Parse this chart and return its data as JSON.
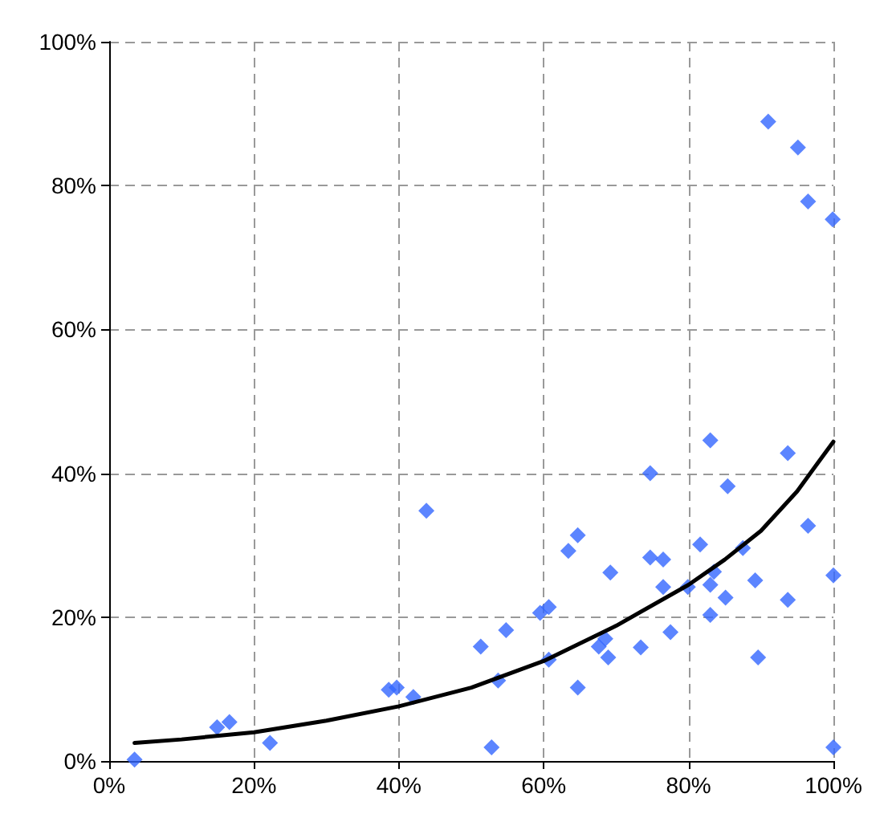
{
  "chart_data": {
    "type": "scatter",
    "xlim": [
      0,
      100
    ],
    "ylim": [
      0,
      100
    ],
    "xticks": [
      {
        "value": 0,
        "label": "0%"
      },
      {
        "value": 20,
        "label": "20%"
      },
      {
        "value": 40,
        "label": "40%"
      },
      {
        "value": 60,
        "label": "60%"
      },
      {
        "value": 80,
        "label": "80%"
      },
      {
        "value": 100,
        "label": "100%"
      }
    ],
    "yticks": [
      {
        "value": 0,
        "label": "0%"
      },
      {
        "value": 20,
        "label": "20%"
      },
      {
        "value": 40,
        "label": "40%"
      },
      {
        "value": 60,
        "label": "60%"
      },
      {
        "value": 80,
        "label": "80%"
      },
      {
        "value": 100,
        "label": "100%"
      }
    ],
    "grid": true,
    "series": [
      {
        "marker": "diamond",
        "color": "#3366ff",
        "x": [
          3.5,
          14.9,
          16.6,
          22.2,
          38.6,
          39.7,
          42.0,
          43.8,
          51.3,
          52.8,
          53.7,
          54.8,
          59.5,
          60.7,
          60.7,
          63.4,
          64.7,
          64.7,
          67.6,
          68.5,
          68.9,
          69.2,
          73.4,
          74.7,
          74.7,
          76.5,
          76.5,
          77.5,
          79.9,
          81.6,
          83.0,
          83.0,
          83.0,
          83.5,
          85.1,
          85.4,
          87.5,
          89.2,
          89.6,
          91.0,
          93.7,
          93.7,
          95.1,
          96.5,
          96.5,
          99.9,
          100,
          100
        ],
        "values": [
          0.2,
          4.7,
          5.4,
          2.5,
          9.9,
          10.2,
          8.9,
          34.8,
          15.9,
          1.9,
          11.2,
          18.2,
          20.6,
          21.4,
          14.1,
          29.2,
          31.4,
          10.2,
          15.9,
          17.0,
          14.4,
          26.2,
          15.8,
          40.0,
          28.3,
          28.0,
          24.2,
          17.9,
          24.2,
          30.1,
          44.6,
          24.5,
          20.3,
          26.3,
          22.7,
          38.2,
          29.6,
          25.1,
          14.4,
          88.9,
          42.8,
          22.4,
          85.3,
          32.7,
          77.8,
          75.3,
          25.8,
          1.9
        ]
      },
      {
        "type": "line",
        "marker": "none",
        "line_style": "solid",
        "color": "#000000",
        "x": [
          3.5,
          10,
          20,
          30,
          40,
          50,
          60,
          70,
          80,
          85,
          90,
          95,
          100
        ],
        "values": [
          2.5,
          3.0,
          4.0,
          5.6,
          7.6,
          10.2,
          13.9,
          18.8,
          24.5,
          28,
          32,
          37.5,
          44.4
        ]
      }
    ]
  }
}
